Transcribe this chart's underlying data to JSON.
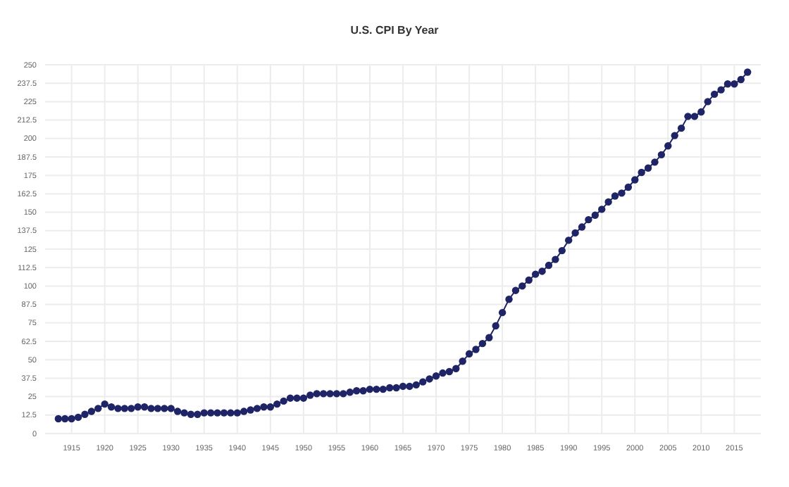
{
  "chart_data": {
    "type": "line",
    "title": "U.S. CPI By Year",
    "x": [
      1913,
      1914,
      1915,
      1916,
      1917,
      1918,
      1919,
      1920,
      1921,
      1922,
      1923,
      1924,
      1925,
      1926,
      1927,
      1928,
      1929,
      1930,
      1931,
      1932,
      1933,
      1934,
      1935,
      1936,
      1937,
      1938,
      1939,
      1940,
      1941,
      1942,
      1943,
      1944,
      1945,
      1946,
      1947,
      1948,
      1949,
      1950,
      1951,
      1952,
      1953,
      1954,
      1955,
      1956,
      1957,
      1958,
      1959,
      1960,
      1961,
      1962,
      1963,
      1964,
      1965,
      1966,
      1967,
      1968,
      1969,
      1970,
      1971,
      1972,
      1973,
      1974,
      1975,
      1976,
      1977,
      1978,
      1979,
      1980,
      1981,
      1982,
      1983,
      1984,
      1985,
      1986,
      1987,
      1988,
      1989,
      1990,
      1991,
      1992,
      1993,
      1994,
      1995,
      1996,
      1997,
      1998,
      1999,
      2000,
      2001,
      2002,
      2003,
      2004,
      2005,
      2006,
      2007,
      2008,
      2009,
      2010,
      2011,
      2012,
      2013,
      2014,
      2015,
      2016,
      2017
    ],
    "series": [
      {
        "color": "#1f2466",
        "values": [
          10,
          10,
          10,
          11,
          13,
          15,
          17,
          20,
          18,
          17,
          17,
          17,
          18,
          18,
          17,
          17,
          17,
          17,
          15,
          14,
          13,
          13,
          14,
          14,
          14,
          14,
          14,
          14,
          15,
          16,
          17,
          18,
          18,
          20,
          22,
          24,
          24,
          24,
          26,
          27,
          27,
          27,
          27,
          27,
          28,
          29,
          29,
          30,
          30,
          30,
          31,
          31,
          32,
          32,
          33,
          35,
          37,
          39,
          41,
          42,
          44,
          49,
          54,
          57,
          61,
          65,
          73,
          82,
          91,
          97,
          100,
          104,
          108,
          110,
          114,
          118,
          124,
          131,
          136,
          140,
          145,
          148,
          152,
          157,
          161,
          163,
          167,
          172,
          177,
          180,
          184,
          189,
          195,
          202,
          207,
          215,
          215,
          218,
          225,
          230,
          233,
          237,
          237,
          240,
          245
        ]
      }
    ],
    "xlim": [
      1911,
      2019
    ],
    "ylim": [
      0,
      250
    ],
    "xticks": [
      1915,
      1920,
      1925,
      1930,
      1935,
      1940,
      1945,
      1950,
      1955,
      1960,
      1965,
      1970,
      1975,
      1980,
      1985,
      1990,
      1995,
      2000,
      2005,
      2010,
      2015
    ],
    "yticks": [
      0,
      12.5,
      25,
      37.5,
      50,
      62.5,
      75,
      87.5,
      100,
      112.5,
      125,
      137.5,
      150,
      162.5,
      175,
      187.5,
      200,
      212.5,
      225,
      237.5,
      250
    ],
    "grid": true,
    "marker": "circle",
    "line_style": "solid"
  }
}
